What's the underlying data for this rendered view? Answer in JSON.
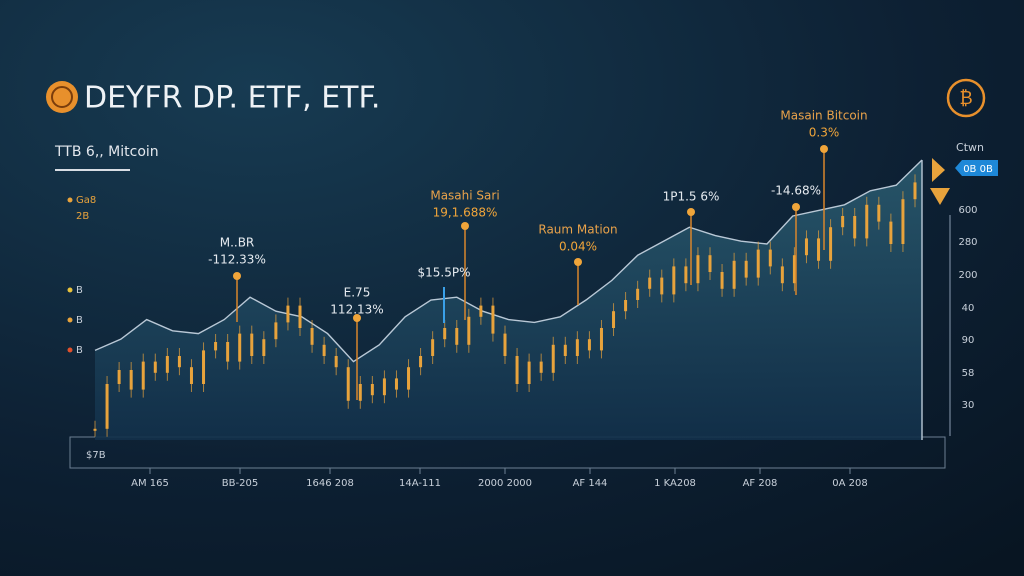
{
  "chart_data": {
    "type": "area",
    "title": "DEYFR DP. ETF, ETF.",
    "subtitle": "TTB 6,, Mitcoin",
    "ylim": [
      0,
      100
    ],
    "area_series": {
      "color": "#1f4a5e",
      "values": [
        32,
        36,
        43,
        39,
        38,
        43,
        51,
        46,
        44,
        38,
        28,
        34,
        44,
        50,
        51,
        46,
        43,
        42,
        44,
        50,
        57,
        66,
        71,
        76,
        73,
        71,
        70,
        80,
        82,
        84,
        89,
        91,
        100
      ]
    },
    "price_series": {
      "color": "#e8a33c",
      "values": [
        4,
        20,
        25,
        18,
        28,
        24,
        30,
        26,
        20,
        32,
        35,
        28,
        38,
        30,
        36,
        42,
        48,
        40,
        34,
        30,
        26,
        14,
        20,
        16,
        22,
        18,
        26,
        30,
        36,
        40,
        34,
        44,
        48,
        38,
        30,
        20,
        28,
        24,
        34,
        30,
        36,
        32,
        40,
        46,
        50,
        54,
        58,
        52,
        62,
        56,
        66,
        60,
        54,
        64,
        58,
        68,
        62,
        56,
        66,
        72,
        64,
        76,
        80,
        72,
        84,
        78,
        70,
        86,
        92
      ]
    },
    "annotations": [
      {
        "lines": [
          "M..BR",
          "-112.33%"
        ]
      },
      {
        "lines": [
          "E.75",
          "112.13%"
        ]
      },
      {
        "lines": [
          "Masahi Sari",
          "19,1.688%"
        ]
      },
      {
        "lines": [
          "$15.5P%"
        ]
      },
      {
        "lines": [
          "Raum Mation",
          "0.04%"
        ]
      },
      {
        "lines": [
          "1P1.5 6%"
        ]
      },
      {
        "lines": [
          "-14.68%"
        ]
      },
      {
        "lines": [
          "Masain Bitcoin",
          "0.3%"
        ]
      }
    ],
    "left_axis_labels": [
      "Ga8",
      "2B",
      "B",
      "B",
      "B",
      "$7B"
    ],
    "right_axis_title": "Ctwn",
    "right_tag": "0B 0B",
    "right_axis_labels": [
      "600",
      "280",
      "200",
      "40",
      "90",
      "58",
      "30"
    ],
    "x_axis_labels": [
      "AM 165",
      "BB-205",
      "1646 208",
      "14A-111",
      "2000 2000",
      "AF 144",
      "1 KA208",
      "AF 208",
      "0A 208"
    ]
  }
}
